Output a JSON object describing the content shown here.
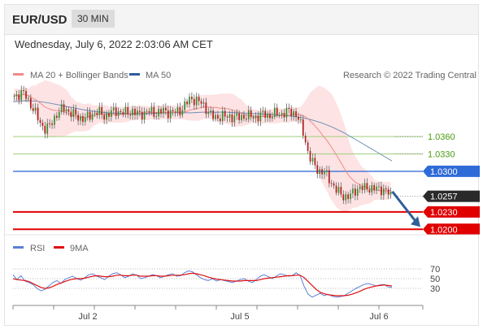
{
  "header": {
    "symbol": "EUR/USD",
    "timeframe": "30 MIN",
    "datetime": "Wednesday, July 6, 2022 2:03:06 AM CET"
  },
  "legend": {
    "main": [
      {
        "label": "MA 20 + Bollinger Bands",
        "color": "#f08a8a"
      },
      {
        "label": "MA 50",
        "color": "#2c5d9a"
      }
    ],
    "indicator": [
      {
        "label": "RSI",
        "color": "#5b7fd6"
      },
      {
        "label": "9MA",
        "color": "#e01010"
      }
    ],
    "credit": "Research © 2022 Trading Central"
  },
  "chart_data": [
    {
      "type": "candlestick",
      "ylim": [
        1.0185,
        1.0475
      ],
      "x_tick_labels": [
        "Jul 2",
        "Jul 5",
        "Jul 6"
      ],
      "price_levels": [
        {
          "value": 1.036,
          "label": "1.0360",
          "style": "green-line"
        },
        {
          "value": 1.033,
          "label": "1.0330",
          "style": "green-line"
        },
        {
          "value": 1.03,
          "label": "1.0300",
          "style": "blue-tag"
        },
        {
          "value": 1.0257,
          "label": "1.0257",
          "style": "current-price"
        },
        {
          "value": 1.023,
          "label": "1.0230",
          "style": "red-tag"
        },
        {
          "value": 1.02,
          "label": "1.0200",
          "style": "red-tag"
        }
      ],
      "ohlc_path": [
        1.043,
        1.0432,
        1.0435,
        1.043,
        1.0418,
        1.0405,
        1.0392,
        1.038,
        1.0372,
        1.0378,
        1.039,
        1.04,
        1.0405,
        1.041,
        1.0402,
        1.0398,
        1.0395,
        1.0392,
        1.039,
        1.0395,
        1.04,
        1.0402,
        1.04,
        1.0396,
        1.0398,
        1.0402,
        1.0405,
        1.0402,
        1.04,
        1.0402,
        1.0404,
        1.04,
        1.0398,
        1.0401,
        1.0403,
        1.0402,
        1.04,
        1.0402,
        1.0404,
        1.0403,
        1.0401,
        1.0402,
        1.0404,
        1.041,
        1.0418,
        1.0426,
        1.0424,
        1.042,
        1.0416,
        1.0408,
        1.0398,
        1.0392,
        1.0394,
        1.0396,
        1.0393,
        1.0395,
        1.0394,
        1.0392,
        1.0394,
        1.0396,
        1.0395,
        1.0393,
        1.0395,
        1.0397,
        1.0398,
        1.0396,
        1.0398,
        1.04,
        1.0399,
        1.0401,
        1.0403,
        1.0402,
        1.0398,
        1.038,
        1.036,
        1.033,
        1.0315,
        1.0305,
        1.03,
        1.0298,
        1.029,
        1.028,
        1.0268,
        1.0262,
        1.0258,
        1.0255,
        1.026,
        1.0268,
        1.0272,
        1.027,
        1.0272,
        1.0271,
        1.027,
        1.0269,
        1.027,
        1.0265,
        1.0257
      ],
      "ma50_path": [
        1.042,
        1.0422,
        1.0421,
        1.0418,
        1.0414,
        1.041,
        1.0406,
        1.0403,
        1.0401,
        1.04,
        1.0399,
        1.0399,
        1.04,
        1.0401,
        1.0401,
        1.0401,
        1.0402,
        1.0402,
        1.0402,
        1.0401,
        1.04,
        1.0399,
        1.0398,
        1.0396,
        1.0394,
        1.039,
        1.0384,
        1.0376,
        1.0366,
        1.0354,
        1.0342,
        1.033,
        1.0318
      ]
    },
    {
      "type": "line",
      "name": "RSI panel",
      "ylim": [
        0,
        90
      ],
      "y_ticks": [
        70,
        50,
        30
      ],
      "series": [
        {
          "name": "RSI",
          "values": [
            58,
            48,
            56,
            45,
            42,
            38,
            30,
            25,
            28,
            35,
            42,
            46,
            40,
            48,
            52,
            55,
            50,
            47,
            52,
            58,
            60,
            55,
            52,
            48,
            55,
            60,
            62,
            58,
            52,
            55,
            60,
            57,
            50,
            52,
            55,
            58,
            56,
            52,
            55,
            58,
            60,
            55,
            56,
            62,
            66,
            64,
            58,
            52,
            48,
            46,
            50,
            45,
            48,
            46,
            44,
            42,
            45,
            48,
            50,
            45,
            42,
            48,
            55,
            58,
            54,
            50,
            55,
            60,
            58,
            55,
            56,
            62,
            56,
            34,
            18,
            12,
            16,
            20,
            15,
            18,
            14,
            12,
            13,
            15,
            20,
            25,
            30,
            34,
            38,
            40,
            38,
            35,
            37,
            38,
            33,
            32
          ]
        },
        {
          "name": "9MA",
          "values": [
            50,
            48,
            47,
            46,
            44,
            40,
            36,
            32,
            30,
            31,
            34,
            38,
            41,
            44,
            47,
            49,
            50,
            50,
            51,
            53,
            55,
            56,
            55,
            54,
            54,
            55,
            57,
            57,
            56,
            56,
            57,
            57,
            55,
            55,
            55,
            56,
            56,
            55,
            55,
            56,
            57,
            57,
            57,
            58,
            60,
            61,
            60,
            58,
            56,
            53,
            51,
            49,
            48,
            47,
            46,
            45,
            45,
            45,
            46,
            46,
            46,
            46,
            48,
            50,
            51,
            52,
            53,
            54,
            55,
            56,
            56,
            57,
            57,
            52,
            44,
            36,
            28,
            22,
            19,
            17,
            16,
            15,
            15,
            15,
            16,
            18,
            21,
            24,
            28,
            31,
            33,
            35,
            36,
            37,
            36,
            35
          ]
        }
      ]
    }
  ]
}
